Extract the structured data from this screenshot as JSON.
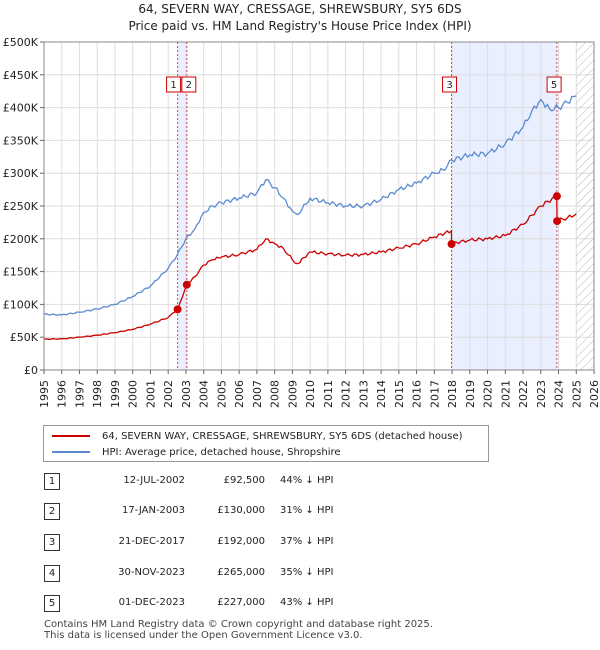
{
  "title_line1": "64, SEVERN WAY, CRESSAGE, SHREWSBURY, SY5 6DS",
  "title_line2": "Price paid vs. HM Land Registry's House Price Index (HPI)",
  "legend": {
    "property": "64, SEVERN WAY, CRESSAGE, SHREWSBURY, SY5 6DS (detached house)",
    "hpi": "HPI: Average price, detached house, Shropshire"
  },
  "colors": {
    "property": "#cc0000",
    "hpi": "#5b8bd0",
    "band": "#e9efff",
    "marker": "#cc0000"
  },
  "sales": [
    {
      "num": "1",
      "date": "12-JUL-2002",
      "price": "£92,500",
      "hpi": "44% ↓ HPI"
    },
    {
      "num": "2",
      "date": "17-JAN-2003",
      "price": "£130,000",
      "hpi": "31% ↓ HPI"
    },
    {
      "num": "3",
      "date": "21-DEC-2017",
      "price": "£192,000",
      "hpi": "37% ↓ HPI"
    },
    {
      "num": "4",
      "date": "30-NOV-2023",
      "price": "£265,000",
      "hpi": "35% ↓ HPI"
    },
    {
      "num": "5",
      "date": "01-DEC-2023",
      "price": "£227,000",
      "hpi": "43% ↓ HPI"
    }
  ],
  "footer_line1": "Contains HM Land Registry data © Crown copyright and database right 2025.",
  "footer_line2": "This data is licensed under the Open Government Licence v3.0.",
  "chart_data": {
    "type": "line",
    "title": "Price paid vs. HM Land Registry's House Price Index (HPI)",
    "xlim": [
      1995,
      2026
    ],
    "ylim": [
      0,
      500000
    ],
    "x_ticks": [
      1995,
      1996,
      1997,
      1998,
      1999,
      2000,
      2001,
      2002,
      2003,
      2004,
      2005,
      2006,
      2007,
      2008,
      2009,
      2010,
      2011,
      2012,
      2013,
      2014,
      2015,
      2016,
      2017,
      2018,
      2019,
      2020,
      2021,
      2022,
      2023,
      2024,
      2025,
      2026
    ],
    "y_ticks": [
      0,
      50000,
      100000,
      150000,
      200000,
      250000,
      300000,
      350000,
      400000,
      450000,
      500000
    ],
    "y_tick_labels": [
      "£0",
      "£50K",
      "£100K",
      "£150K",
      "£200K",
      "£250K",
      "£300K",
      "£350K",
      "£400K",
      "£450K",
      "£500K"
    ],
    "series": [
      {
        "name": "HPI: Average price, detached house, Shropshire",
        "x": [
          1995,
          1996,
          1997,
          1998,
          1999,
          2000,
          2001,
          2002,
          2002.5,
          2003,
          2003.5,
          2004,
          2004.5,
          2005,
          2006,
          2007,
          2007.5,
          2008,
          2008.5,
          2009,
          2009.3,
          2010,
          2011,
          2012,
          2013,
          2014,
          2015,
          2016,
          2017,
          2017.5,
          2018,
          2019,
          2020,
          2021,
          2022,
          2022.5,
          2023,
          2023.5,
          2024,
          2024.5,
          2025
        ],
        "y": [
          85000,
          84000,
          88000,
          93000,
          100000,
          112000,
          128000,
          155000,
          175000,
          200000,
          215000,
          240000,
          250000,
          255000,
          262000,
          270000,
          290000,
          278000,
          262000,
          242000,
          237000,
          262000,
          255000,
          250000,
          250000,
          260000,
          275000,
          285000,
          300000,
          305000,
          320000,
          328000,
          330000,
          345000,
          370000,
          395000,
          412000,
          398000,
          400000,
          408000,
          418000
        ]
      },
      {
        "name": "64, SEVERN WAY, CRESSAGE, SHREWSBURY, SY5 6DS (detached house)",
        "x": [
          1995,
          1996,
          1997,
          1998,
          1999,
          2000,
          2001,
          2002,
          2002.53,
          2002.54,
          2003.04,
          2003.05,
          2003.5,
          2004,
          2004.5,
          2005,
          2006,
          2007,
          2007.5,
          2008,
          2008.5,
          2009,
          2009.3,
          2010,
          2011,
          2012,
          2013,
          2014,
          2015,
          2016,
          2017,
          2017.96,
          2017.97,
          2018,
          2019,
          2020,
          2021,
          2022,
          2022.5,
          2023,
          2023.9,
          2023.92,
          2024,
          2024.5,
          2025
        ],
        "y": [
          47000,
          47500,
          50000,
          53000,
          57000,
          62000,
          70000,
          80000,
          92500,
          92500,
          130000,
          130000,
          142000,
          160000,
          168000,
          172000,
          176000,
          184000,
          200000,
          193000,
          185000,
          168000,
          162000,
          180000,
          177000,
          175000,
          176000,
          180000,
          186000,
          192000,
          203000,
          212000,
          192000,
          193000,
          198000,
          200000,
          205000,
          222000,
          236000,
          250000,
          265000,
          227000,
          228000,
          232000,
          238000
        ]
      }
    ],
    "sale_markers": [
      {
        "label": "1",
        "x": 2002.53,
        "y": 92500
      },
      {
        "label": "2",
        "x": 2003.05,
        "y": 130000
      },
      {
        "label": "3",
        "x": 2017.97,
        "y": 192000
      },
      {
        "label": "4",
        "x": 2023.91,
        "y": 265000
      },
      {
        "label": "5",
        "x": 2023.92,
        "y": 227000
      }
    ],
    "shaded_ranges": [
      [
        2002.53,
        2003.05
      ],
      [
        2017.97,
        2023.92
      ]
    ],
    "hatched_from": 2025
  }
}
